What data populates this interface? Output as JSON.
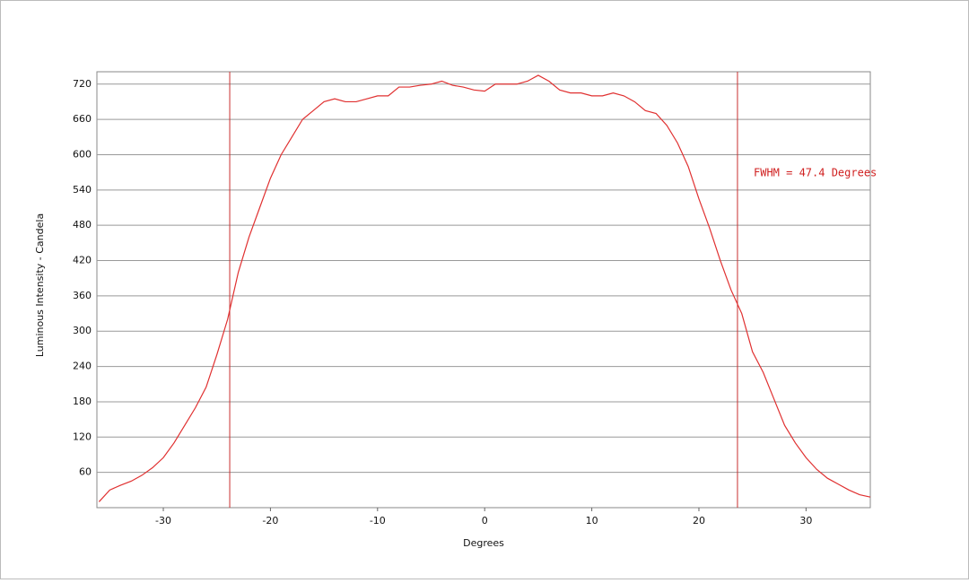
{
  "chart_data": {
    "type": "line",
    "x_label": "Degrees",
    "y_label": "Luminous Intensity - Candela",
    "annotation": "FWHM = 47.4 Degrees",
    "x": [
      -36,
      -35,
      -34,
      -33,
      -32,
      -31,
      -30,
      -29,
      -28,
      -27,
      -26,
      -25,
      -24,
      -23,
      -22,
      -21,
      -20,
      -19,
      -18,
      -17,
      -16,
      -15,
      -14,
      -13,
      -12,
      -11,
      -10,
      -9,
      -8,
      -7,
      -6,
      -5,
      -4,
      -3,
      -2,
      -1,
      0,
      1,
      2,
      3,
      4,
      5,
      6,
      7,
      8,
      9,
      10,
      11,
      12,
      13,
      14,
      15,
      16,
      17,
      18,
      19,
      20,
      21,
      22,
      23,
      24,
      25,
      26,
      27,
      28,
      29,
      30,
      31,
      32,
      33,
      34,
      35,
      36
    ],
    "series": [
      {
        "color": "#e03030",
        "values": [
          10,
          30,
          38,
          45,
          55,
          68,
          85,
          110,
          140,
          170,
          205,
          260,
          320,
          400,
          460,
          510,
          560,
          600,
          630,
          660,
          675,
          690,
          695,
          690,
          690,
          695,
          700,
          700,
          715,
          715,
          718,
          720,
          725,
          718,
          715,
          710,
          708,
          720,
          720,
          720,
          725,
          735,
          725,
          710,
          705,
          705,
          700,
          700,
          705,
          700,
          690,
          675,
          670,
          650,
          620,
          580,
          525,
          475,
          420,
          370,
          330,
          265,
          230,
          185,
          140,
          110,
          85,
          65,
          50,
          40,
          30,
          22,
          18
        ]
      }
    ],
    "vlines": [
      -23.8,
      23.6
    ],
    "vline_color": "#c83030",
    "xlim": [
      -36.2,
      36
    ],
    "ylim": [
      0,
      741
    ],
    "xticks": [
      -30,
      -20,
      -10,
      0,
      10,
      20,
      30
    ],
    "yticks": [
      60,
      120,
      180,
      240,
      300,
      360,
      420,
      480,
      540,
      600,
      660,
      720
    ],
    "grid": true
  }
}
